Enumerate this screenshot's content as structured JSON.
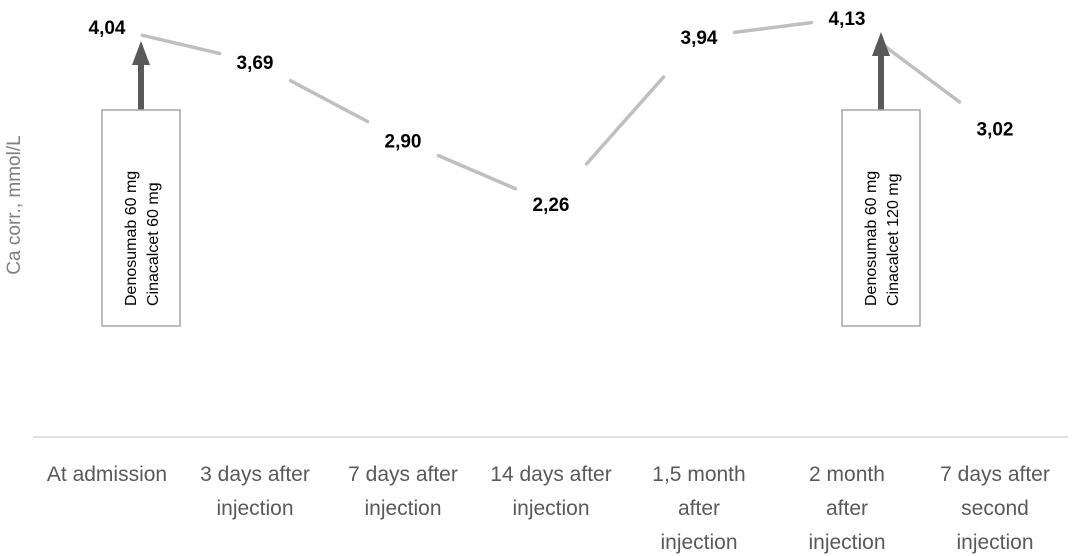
{
  "chart_data": {
    "type": "line",
    "ylabel": "Ca corr., mmol/L",
    "xlabel": "",
    "categories": [
      "At admission",
      "3 days after injection",
      "7 days after injection",
      "14 days after injection",
      "1,5 month after injection",
      "2 month after injection",
      "7 days after second injection"
    ],
    "category_lines": [
      [
        "At admission"
      ],
      [
        "3 days after",
        "injection"
      ],
      [
        "7 days after",
        "injection"
      ],
      [
        "14 days after",
        "injection"
      ],
      [
        "1,5 month",
        "after",
        "injection"
      ],
      [
        "2 month",
        "after",
        "injection"
      ],
      [
        "7 days after",
        "second",
        "injection"
      ]
    ],
    "series": [
      {
        "values": [
          4.04,
          3.69,
          2.9,
          2.26,
          3.94,
          4.13,
          3.02
        ],
        "labels": [
          "4,04",
          "3,69",
          "2,90",
          "2,26",
          "3,94",
          "4,13",
          "3,02"
        ],
        "color": "#bfbfbf"
      }
    ],
    "annotations": [
      {
        "category_index": 0,
        "lines": [
          "Denosumab 60 mg",
          "Cinacalcet 60 mg"
        ]
      },
      {
        "category_index": 5,
        "lines": [
          "Denosumab 60 mg",
          "Cinacalcet 120 mg"
        ]
      }
    ],
    "grid": false,
    "colors": {
      "line": "#bfbfbf",
      "axis": "#d9d9d9",
      "arrow": "#595959",
      "box_border": "#a6a6a6"
    }
  }
}
